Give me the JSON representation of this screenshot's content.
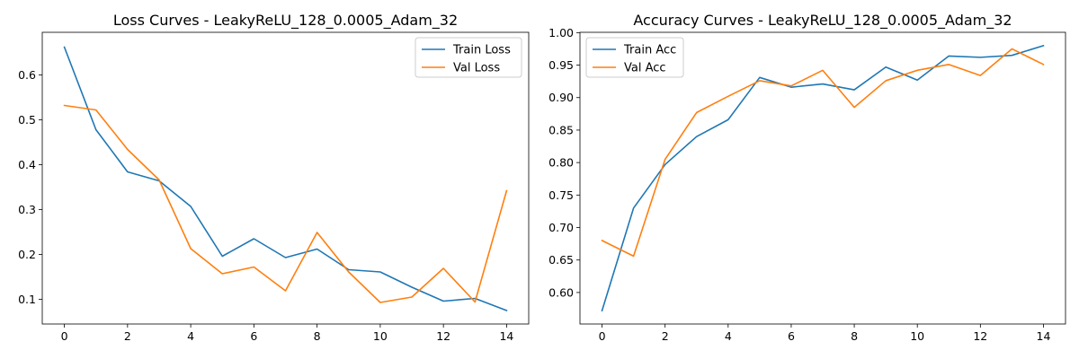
{
  "chart_data": [
    {
      "type": "line",
      "title": "Loss Curves - LeakyReLU_128_0.0005_Adam_32",
      "xlabel": "",
      "ylabel": "",
      "x": [
        0,
        1,
        2,
        3,
        4,
        5,
        6,
        7,
        8,
        9,
        10,
        11,
        12,
        13,
        14
      ],
      "xticks": [
        0,
        2,
        4,
        6,
        8,
        10,
        12,
        14
      ],
      "yticks": [
        0.1,
        0.2,
        0.3,
        0.4,
        0.5,
        0.6
      ],
      "xlim": [
        -0.7,
        14.7
      ],
      "ylim": [
        0.045,
        0.695
      ],
      "grid": false,
      "legend_position": "top-right",
      "series": [
        {
          "name": "Train Loss",
          "color": "#1f77b4",
          "values": [
            0.662,
            0.478,
            0.384,
            0.364,
            0.307,
            0.196,
            0.235,
            0.193,
            0.212,
            0.166,
            0.161,
            0.127,
            0.096,
            0.102,
            0.075
          ]
        },
        {
          "name": "Val Loss",
          "color": "#ff7f0e",
          "values": [
            0.532,
            0.522,
            0.434,
            0.366,
            0.213,
            0.157,
            0.172,
            0.119,
            0.249,
            0.161,
            0.093,
            0.105,
            0.169,
            0.094,
            0.342
          ]
        }
      ]
    },
    {
      "type": "line",
      "title": "Accuracy Curves - LeakyReLU_128_0.0005_Adam_32",
      "xlabel": "",
      "ylabel": "",
      "x": [
        0,
        1,
        2,
        3,
        4,
        5,
        6,
        7,
        8,
        9,
        10,
        11,
        12,
        13,
        14
      ],
      "xticks": [
        0,
        2,
        4,
        6,
        8,
        10,
        12,
        14
      ],
      "yticks": [
        0.6,
        0.65,
        0.7,
        0.75,
        0.8,
        0.85,
        0.9,
        0.95,
        1.0
      ],
      "ytick_decimals": 2,
      "xlim": [
        -0.7,
        14.7
      ],
      "ylim": [
        0.5515,
        1.0005
      ],
      "grid": false,
      "legend_position": "top-left",
      "series": [
        {
          "name": "Train Acc",
          "color": "#1f77b4",
          "values": [
            0.572,
            0.73,
            0.797,
            0.84,
            0.866,
            0.931,
            0.916,
            0.921,
            0.912,
            0.947,
            0.927,
            0.964,
            0.962,
            0.965,
            0.98
          ]
        },
        {
          "name": "Val Acc",
          "color": "#ff7f0e",
          "values": [
            0.68,
            0.656,
            0.805,
            0.877,
            0.902,
            0.926,
            0.918,
            0.942,
            0.885,
            0.926,
            0.942,
            0.951,
            0.934,
            0.975,
            0.951
          ]
        }
      ]
    }
  ]
}
